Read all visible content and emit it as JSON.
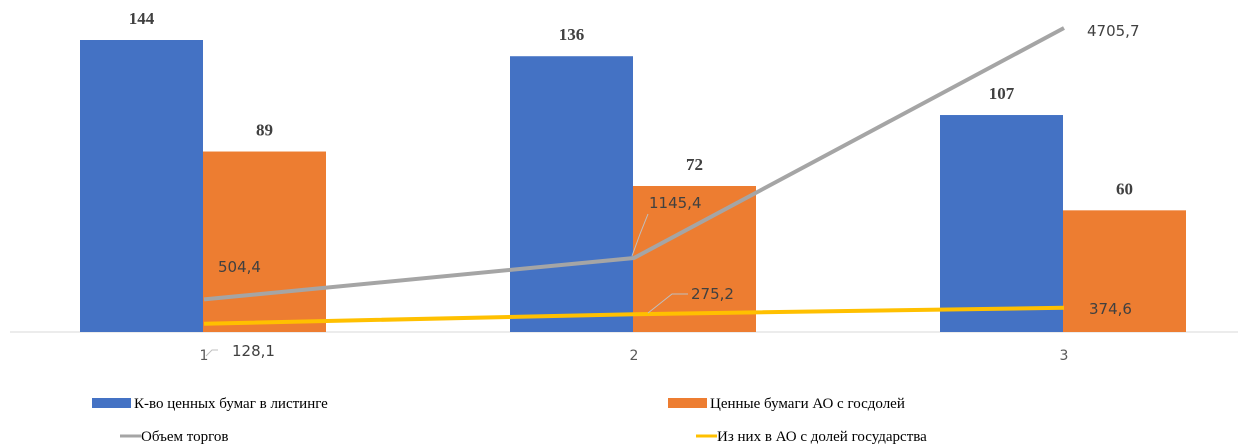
{
  "chart_data": {
    "type": "bar",
    "categories": [
      "1",
      "2",
      "3"
    ],
    "series": [
      {
        "name": "К-во ценных бумаг в листинге",
        "kind": "bar",
        "axis": "left",
        "color": "#4472C4",
        "values": [
          144,
          136,
          107
        ],
        "labels": [
          "144",
          "136",
          "107"
        ]
      },
      {
        "name": "Ценные бумаги АО с госдолей",
        "kind": "bar",
        "axis": "left",
        "color": "#ED7D31",
        "values": [
          89,
          72,
          60
        ],
        "labels": [
          "89",
          "72",
          "60"
        ]
      },
      {
        "name": "Объем торгов",
        "kind": "line",
        "axis": "right",
        "color": "#A5A5A5",
        "values": [
          504.4,
          1145.4,
          4705.7
        ],
        "labels": [
          "504,4",
          "1145,4",
          "4705,7"
        ]
      },
      {
        "name": "Из них в АО с долей государства",
        "kind": "line",
        "axis": "right",
        "color": "#FFC000",
        "values": [
          128.1,
          275.2,
          374.6
        ],
        "labels": [
          "128,1",
          "275,2",
          "374,6"
        ]
      }
    ],
    "legend_position": "bottom",
    "grid": false
  }
}
